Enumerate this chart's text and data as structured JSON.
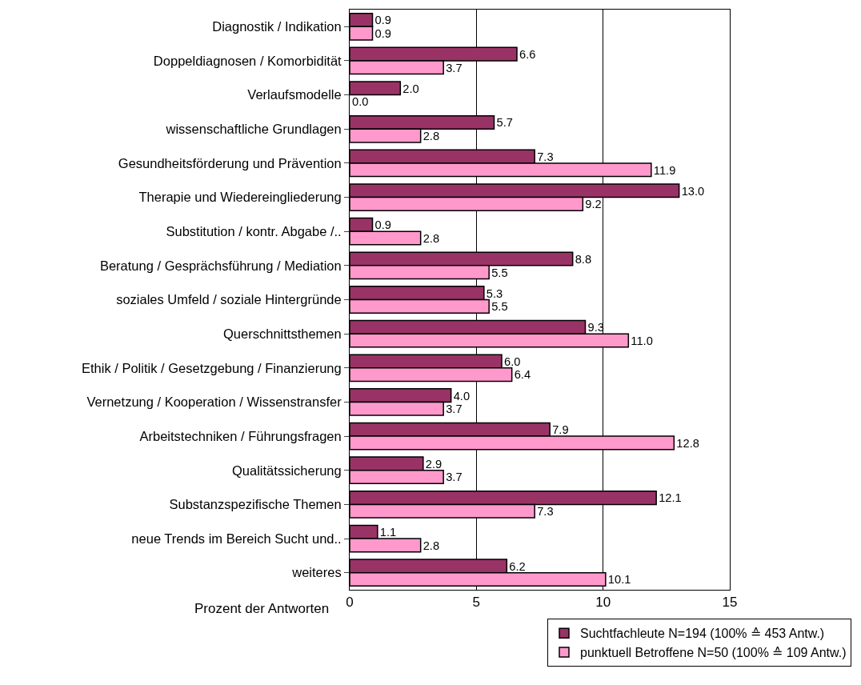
{
  "chart_data": {
    "type": "bar",
    "orientation": "horizontal",
    "categories": [
      "Diagnostik / Indikation",
      "Doppeldiagnosen / Komorbidität",
      "Verlaufsmodelle",
      "wissenschaftliche Grundlagen",
      "Gesundheitsförderung und Prävention",
      "Therapie und Wiedereingliederung",
      "Substitution / kontr. Abgabe /..",
      "Beratung / Gesprächsführung / Mediation",
      "soziales Umfeld / soziale Hintergründe",
      "Querschnittsthemen",
      "Ethik / Politik / Gesetzgebung / Finanzierung",
      "Vernetzung / Kooperation / Wissenstransfer",
      "Arbeitstechniken / Führungsfragen",
      "Qualitätssicherung",
      "Substanzspezifische Themen",
      "neue Trends im Bereich Sucht und..",
      "weiteres"
    ],
    "series": [
      {
        "name": "Suchtfachleute N=194 (100% ≙ 453 Antw.)",
        "color": "#993366",
        "values": [
          0.9,
          6.6,
          2.0,
          5.7,
          7.3,
          13.0,
          0.9,
          8.8,
          5.3,
          9.3,
          6.0,
          4.0,
          7.9,
          2.9,
          12.1,
          1.1,
          6.2
        ],
        "value_labels": [
          "0.9",
          "6.6",
          "2.0",
          "5.7",
          "7.3",
          "13.0",
          "0.9",
          "8.8",
          "5.3",
          "9.3",
          "6.0",
          "4.0",
          "7.9",
          "2.9",
          "12.1",
          "1.1",
          "6.2"
        ]
      },
      {
        "name": "punktuell Betroffene N=50 (100% ≙ 109 Antw.)",
        "color": "#ff99cc",
        "values": [
          0.9,
          3.7,
          0.0,
          2.8,
          11.9,
          9.2,
          2.8,
          5.5,
          5.5,
          11.0,
          6.4,
          3.7,
          12.8,
          3.7,
          7.3,
          2.8,
          10.1
        ],
        "value_labels": [
          "0.9",
          "3.7",
          "0.0",
          "2.8",
          "11.9",
          "9.2",
          "2.8",
          "5.5",
          "5.5",
          "11.0",
          "6.4",
          "3.7",
          "12.8",
          "3.7",
          "7.3",
          "2.8",
          "10.1"
        ]
      }
    ],
    "xlabel": "Prozent der Antworten",
    "xlim": [
      0,
      15
    ],
    "xticks": [
      0,
      5,
      10,
      15
    ],
    "grid": "x",
    "legend": "bottom"
  }
}
